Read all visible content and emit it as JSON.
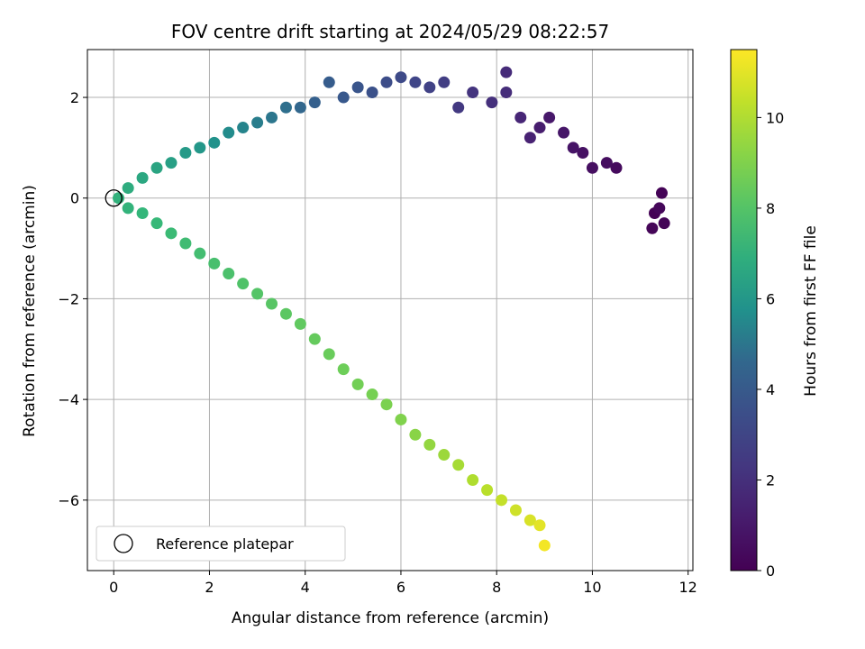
{
  "chart_data": {
    "type": "scatter",
    "title": "FOV centre drift starting at 2024/05/29 08:22:57",
    "xlabel": "Angular distance from reference (arcmin)",
    "ylabel": "Rotation from reference (arcmin)",
    "xlim": [
      -0.55,
      12.1
    ],
    "ylim": [
      -7.4,
      2.95
    ],
    "xticks": [
      0,
      2,
      4,
      6,
      8,
      10,
      12
    ],
    "yticks": [
      -6,
      -4,
      -2,
      0,
      2
    ],
    "grid": true,
    "colormap": "viridis",
    "colorbar": {
      "label": "Hours from first FF file",
      "range": [
        0,
        11.5
      ],
      "ticks": [
        0,
        2,
        4,
        6,
        8,
        10
      ]
    },
    "reference": {
      "x": 0,
      "y": 0,
      "label": "Reference platepar"
    },
    "legend_position": "lower-left",
    "series": [
      {
        "description": "drift track (x, y, hours) sampled along path",
        "points": [
          [
            11.3,
            -0.3,
            0.05
          ],
          [
            11.45,
            0.1,
            0.1
          ],
          [
            11.5,
            -0.5,
            0.15
          ],
          [
            11.25,
            -0.6,
            0.2
          ],
          [
            11.4,
            -0.2,
            0.25
          ],
          [
            10.5,
            0.6,
            0.4
          ],
          [
            10.3,
            0.7,
            0.5
          ],
          [
            10.0,
            0.6,
            0.6
          ],
          [
            9.8,
            0.9,
            0.7
          ],
          [
            9.6,
            1.0,
            0.8
          ],
          [
            9.4,
            1.3,
            0.9
          ],
          [
            9.1,
            1.6,
            1.0
          ],
          [
            8.9,
            1.4,
            1.2
          ],
          [
            8.7,
            1.2,
            1.4
          ],
          [
            8.5,
            1.6,
            1.6
          ],
          [
            8.2,
            2.5,
            1.8
          ],
          [
            8.2,
            2.1,
            1.9
          ],
          [
            7.9,
            1.9,
            2.0
          ],
          [
            7.5,
            2.1,
            2.2
          ],
          [
            7.2,
            1.8,
            2.4
          ],
          [
            6.9,
            2.3,
            2.6
          ],
          [
            6.6,
            2.2,
            2.8
          ],
          [
            6.3,
            2.3,
            3.0
          ],
          [
            6.0,
            2.4,
            3.2
          ],
          [
            5.7,
            2.3,
            3.4
          ],
          [
            5.4,
            2.1,
            3.6
          ],
          [
            5.1,
            2.2,
            3.8
          ],
          [
            4.8,
            2.0,
            4.0
          ],
          [
            4.5,
            2.3,
            4.2
          ],
          [
            4.2,
            1.9,
            4.4
          ],
          [
            3.9,
            1.8,
            4.6
          ],
          [
            3.6,
            1.8,
            4.8
          ],
          [
            3.3,
            1.6,
            5.0
          ],
          [
            3.0,
            1.5,
            5.2
          ],
          [
            2.7,
            1.4,
            5.4
          ],
          [
            2.4,
            1.3,
            5.6
          ],
          [
            2.1,
            1.1,
            5.8
          ],
          [
            1.8,
            1.0,
            6.0
          ],
          [
            1.5,
            0.9,
            6.1
          ],
          [
            1.2,
            0.7,
            6.3
          ],
          [
            0.9,
            0.6,
            6.5
          ],
          [
            0.6,
            0.4,
            6.6
          ],
          [
            0.3,
            0.2,
            6.8
          ],
          [
            0.1,
            0.0,
            7.0
          ],
          [
            0.3,
            -0.2,
            7.1
          ],
          [
            0.6,
            -0.3,
            7.2
          ],
          [
            0.9,
            -0.5,
            7.3
          ],
          [
            1.2,
            -0.7,
            7.4
          ],
          [
            1.5,
            -0.9,
            7.5
          ],
          [
            1.8,
            -1.1,
            7.6
          ],
          [
            2.1,
            -1.3,
            7.7
          ],
          [
            2.4,
            -1.5,
            7.8
          ],
          [
            2.7,
            -1.7,
            7.9
          ],
          [
            3.0,
            -1.9,
            8.0
          ],
          [
            3.3,
            -2.1,
            8.1
          ],
          [
            3.6,
            -2.3,
            8.2
          ],
          [
            3.9,
            -2.5,
            8.3
          ],
          [
            4.2,
            -2.8,
            8.4
          ],
          [
            4.5,
            -3.1,
            8.5
          ],
          [
            4.8,
            -3.4,
            8.6
          ],
          [
            5.1,
            -3.7,
            8.7
          ],
          [
            5.4,
            -3.9,
            8.8
          ],
          [
            5.7,
            -4.1,
            8.9
          ],
          [
            6.0,
            -4.4,
            9.0
          ],
          [
            6.3,
            -4.7,
            9.2
          ],
          [
            6.6,
            -4.9,
            9.4
          ],
          [
            6.9,
            -5.1,
            9.6
          ],
          [
            7.2,
            -5.3,
            9.8
          ],
          [
            7.5,
            -5.6,
            10.0
          ],
          [
            7.8,
            -5.8,
            10.2
          ],
          [
            8.1,
            -6.0,
            10.4
          ],
          [
            8.4,
            -6.2,
            10.6
          ],
          [
            8.7,
            -6.4,
            10.8
          ],
          [
            8.9,
            -6.5,
            11.0
          ],
          [
            9.0,
            -6.9,
            11.3
          ]
        ]
      }
    ]
  }
}
